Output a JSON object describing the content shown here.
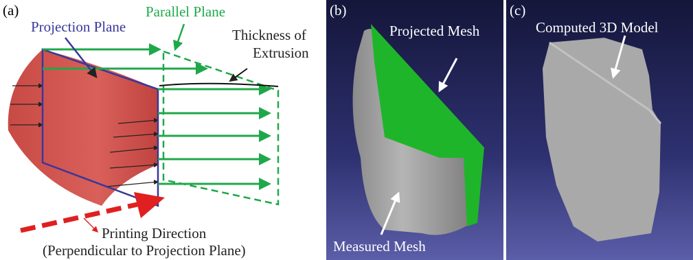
{
  "panels": [
    {
      "label": "(a)",
      "projection_plane": "Projection Plane",
      "parallel_plane": "Parallel Plane",
      "thickness": [
        "Thickness of",
        "Extrusion"
      ],
      "printing_direction": [
        "Printing Direction",
        "(Perpendicular to Projection Plane)"
      ]
    },
    {
      "label": "(b)",
      "projected_mesh": "Projected Mesh",
      "measured_mesh": "Measured Mesh"
    },
    {
      "label": "(c)",
      "computed_model": "Computed 3D Model"
    }
  ]
}
